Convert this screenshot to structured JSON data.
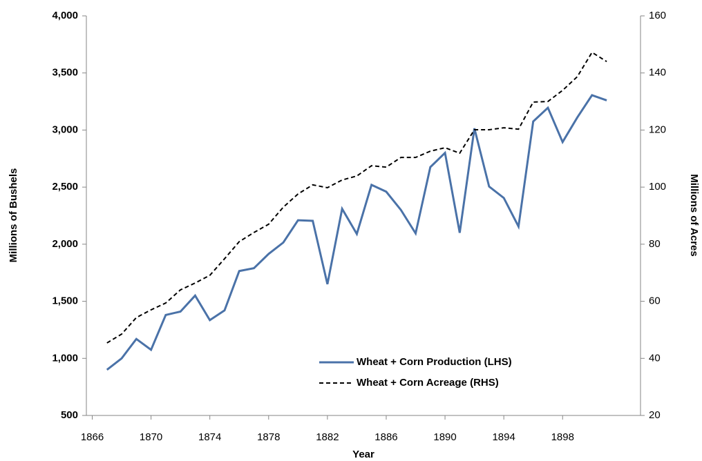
{
  "chart_data": {
    "type": "line",
    "x_label": "Year",
    "y_label": "Millions of Bushels",
    "y2_label": "Millions of Acres",
    "x": [
      1867,
      1868,
      1869,
      1870,
      1871,
      1872,
      1873,
      1874,
      1875,
      1876,
      1877,
      1878,
      1879,
      1880,
      1881,
      1882,
      1883,
      1884,
      1885,
      1886,
      1887,
      1888,
      1889,
      1890,
      1891,
      1892,
      1893,
      1894,
      1895,
      1896,
      1897,
      1898,
      1899,
      1900,
      1901
    ],
    "series": [
      {
        "name": "Wheat + Corn Production (LHS)",
        "color": "#4a72a8",
        "dash": "solid",
        "axis": "y",
        "values": [
          900,
          1000,
          1170,
          1075,
          1380,
          1410,
          1550,
          1335,
          1420,
          1765,
          1790,
          1915,
          2015,
          2210,
          2205,
          1650,
          2310,
          2090,
          2520,
          2460,
          2300,
          2095,
          2675,
          2800,
          2100,
          3015,
          2505,
          2405,
          2155,
          3075,
          3195,
          2895,
          3110,
          3305,
          3260
        ]
      },
      {
        "name": "Wheat + Corn Acreage (RHS)",
        "color": "#000000",
        "dash": "dashed",
        "axis": "y2",
        "values": [
          45.4,
          48.5,
          54.3,
          57,
          59.4,
          64,
          66.4,
          69.1,
          74.9,
          80.9,
          84.1,
          87,
          93,
          97.6,
          100.8,
          99.8,
          102.5,
          103.9,
          107.5,
          107,
          110.4,
          110.4,
          112.6,
          113.8,
          111.9,
          120.1,
          120.1,
          120.8,
          120.3,
          129.8,
          130,
          133.9,
          138.7,
          147.2,
          144
        ]
      }
    ],
    "xlim": [
      1865.6,
      1903.3
    ],
    "xticks": [
      1866,
      1870,
      1874,
      1878,
      1882,
      1886,
      1890,
      1894,
      1898
    ],
    "ylim": [
      500,
      4000
    ],
    "yticks": [
      {
        "value": 500,
        "label": "500"
      },
      {
        "value": 1000,
        "label": "1,000"
      },
      {
        "value": 1500,
        "label": "1,500"
      },
      {
        "value": 2000,
        "label": "2,000"
      },
      {
        "value": 2500,
        "label": "2,500"
      },
      {
        "value": 3000,
        "label": "3,000"
      },
      {
        "value": 3500,
        "label": "3,500"
      },
      {
        "value": 4000,
        "label": "4,000"
      }
    ],
    "y2lim": [
      20,
      160
    ],
    "y2ticks": [
      20,
      40,
      60,
      80,
      100,
      120,
      140,
      160
    ],
    "grid": false,
    "legend": "lower-center"
  }
}
